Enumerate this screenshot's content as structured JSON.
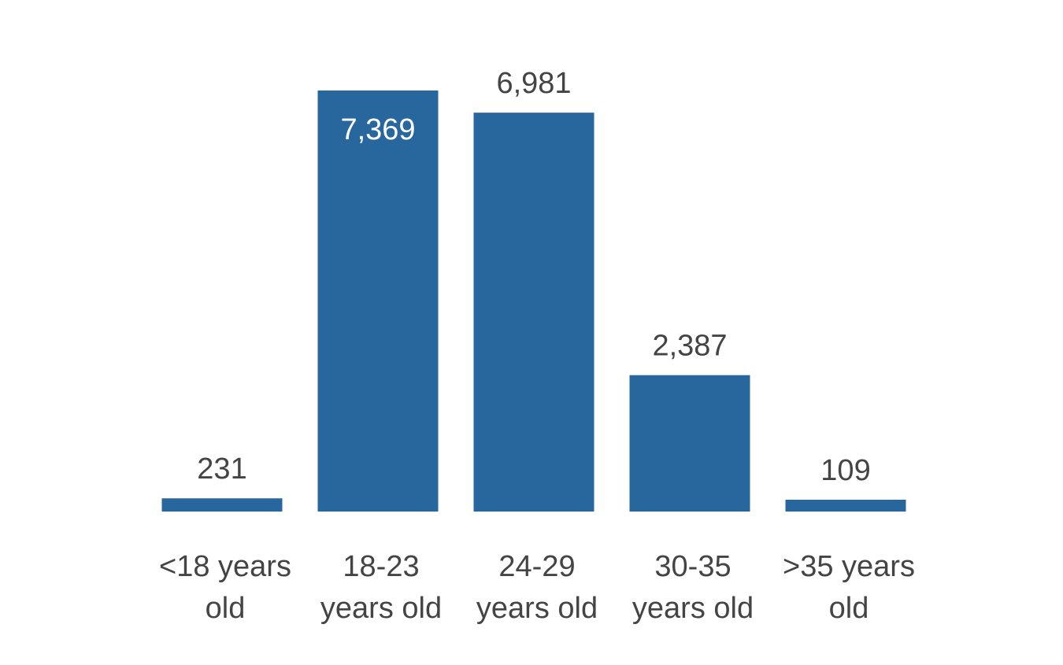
{
  "chart_data": {
    "type": "bar",
    "categories": [
      "<18 years old",
      "18-23 years old",
      "24-29 years old",
      "30-35 years old",
      ">35 years old"
    ],
    "category_label_lines": [
      [
        "<18 years",
        "old"
      ],
      [
        "18-23",
        "years old"
      ],
      [
        "24-29",
        "years old"
      ],
      [
        "30-35",
        "years old"
      ],
      [
        ">35 years",
        "old"
      ]
    ],
    "values": [
      231,
      7369,
      6981,
      2387,
      109
    ],
    "value_labels": [
      "231",
      "7,369",
      "6,981",
      "2,387",
      "109"
    ],
    "label_inside_bar": [
      false,
      true,
      false,
      false,
      false
    ],
    "title": "",
    "xlabel": "",
    "ylabel": "",
    "ylim": [
      0,
      7369
    ],
    "grid": false,
    "legend": "none",
    "bar_color": "#27679e",
    "label_color": "#444444"
  }
}
